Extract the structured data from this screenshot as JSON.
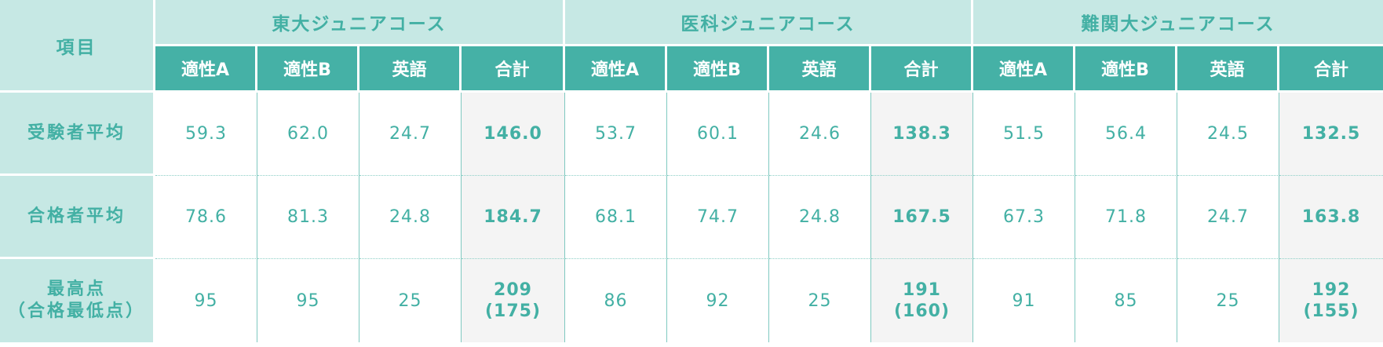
{
  "header": {
    "item_label": "項目",
    "courses": [
      {
        "name": "東大ジュニアコース"
      },
      {
        "name": "医科ジュニアコース"
      },
      {
        "name": "難関大ジュニアコース"
      }
    ],
    "sub_columns": [
      "適性A",
      "適性B",
      "英語",
      "合計"
    ]
  },
  "rows": [
    {
      "label": "受験者平均",
      "courses": [
        {
          "values": [
            "59.3",
            "62.0",
            "24.7"
          ],
          "total": "146.0"
        },
        {
          "values": [
            "53.7",
            "60.1",
            "24.6"
          ],
          "total": "138.3"
        },
        {
          "values": [
            "51.5",
            "56.4",
            "24.5"
          ],
          "total": "132.5"
        }
      ]
    },
    {
      "label": "合格者平均",
      "courses": [
        {
          "values": [
            "78.6",
            "81.3",
            "24.8"
          ],
          "total": "184.7"
        },
        {
          "values": [
            "68.1",
            "74.7",
            "24.8"
          ],
          "total": "167.5"
        },
        {
          "values": [
            "67.3",
            "71.8",
            "24.7"
          ],
          "total": "163.8"
        }
      ]
    },
    {
      "label_line1": "最高点",
      "label_line2": "（合格最低点）",
      "courses": [
        {
          "values": [
            "95",
            "95",
            "25"
          ],
          "total_line1": "209",
          "total_line2": "(175)"
        },
        {
          "values": [
            "86",
            "92",
            "25"
          ],
          "total_line1": "191",
          "total_line2": "(160)"
        },
        {
          "values": [
            "91",
            "85",
            "25"
          ],
          "total_line1": "192",
          "total_line2": "(155)"
        }
      ]
    }
  ]
}
